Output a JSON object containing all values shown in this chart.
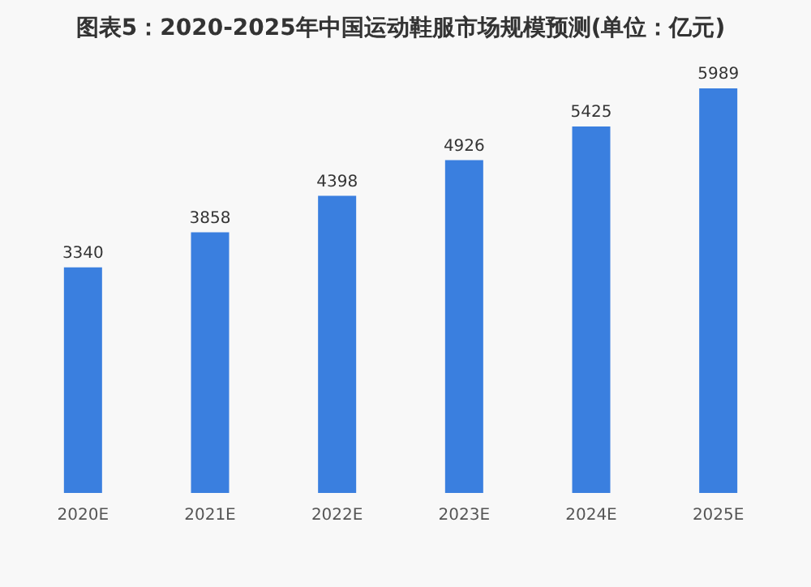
{
  "chart_data": {
    "type": "bar",
    "title": "图表5：2020-2025年中国运动鞋服市场规模预测(单位：亿元)",
    "categories": [
      "2020E",
      "2021E",
      "2022E",
      "2023E",
      "2024E",
      "2025E"
    ],
    "values": [
      3340,
      3858,
      4398,
      4926,
      5425,
      5989
    ],
    "color": "#3a7fdf",
    "tick_labels": "x",
    "data_labels": true
  }
}
